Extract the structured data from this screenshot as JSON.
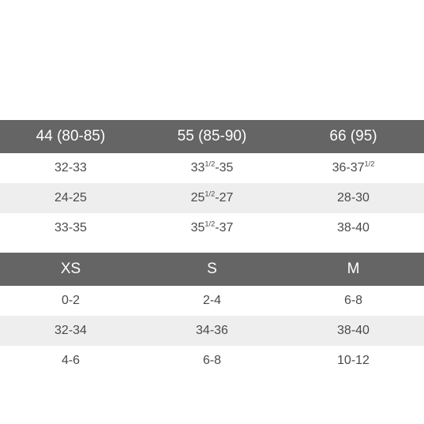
{
  "table1": {
    "header_bg": "#656565",
    "header_color": "#ffffff",
    "row_bg": "#ffffff",
    "row_alt_bg": "#eeeeee",
    "cell_color": "#4a4a4a",
    "columns": [
      "44 (80-85)",
      "55 (85-90)",
      "66 (95)"
    ],
    "rows": [
      {
        "alt": false,
        "cells": [
          {
            "text": "32-33"
          },
          {
            "pre": "33",
            "sup": "1/2",
            "post": "-35"
          },
          {
            "pre": "36-37",
            "sup": "1/2",
            "post": ""
          }
        ]
      },
      {
        "alt": true,
        "cells": [
          {
            "text": "24-25"
          },
          {
            "pre": "25",
            "sup": "1/2",
            "post": "-27"
          },
          {
            "text": "28-30"
          }
        ]
      },
      {
        "alt": false,
        "cells": [
          {
            "text": "33-35"
          },
          {
            "pre": "35",
            "sup": "1/2",
            "post": "-37"
          },
          {
            "text": "38-40"
          }
        ]
      }
    ]
  },
  "table2": {
    "columns": [
      "XS",
      "S",
      "M"
    ],
    "rows": [
      {
        "alt": false,
        "cells": [
          {
            "text": "0-2"
          },
          {
            "text": "2-4"
          },
          {
            "text": "6-8"
          }
        ]
      },
      {
        "alt": true,
        "cells": [
          {
            "text": "32-34"
          },
          {
            "text": "34-36"
          },
          {
            "text": "38-40"
          }
        ]
      },
      {
        "alt": false,
        "cells": [
          {
            "text": "4-6"
          },
          {
            "text": "6-8"
          },
          {
            "text": "10-12"
          }
        ]
      }
    ]
  }
}
